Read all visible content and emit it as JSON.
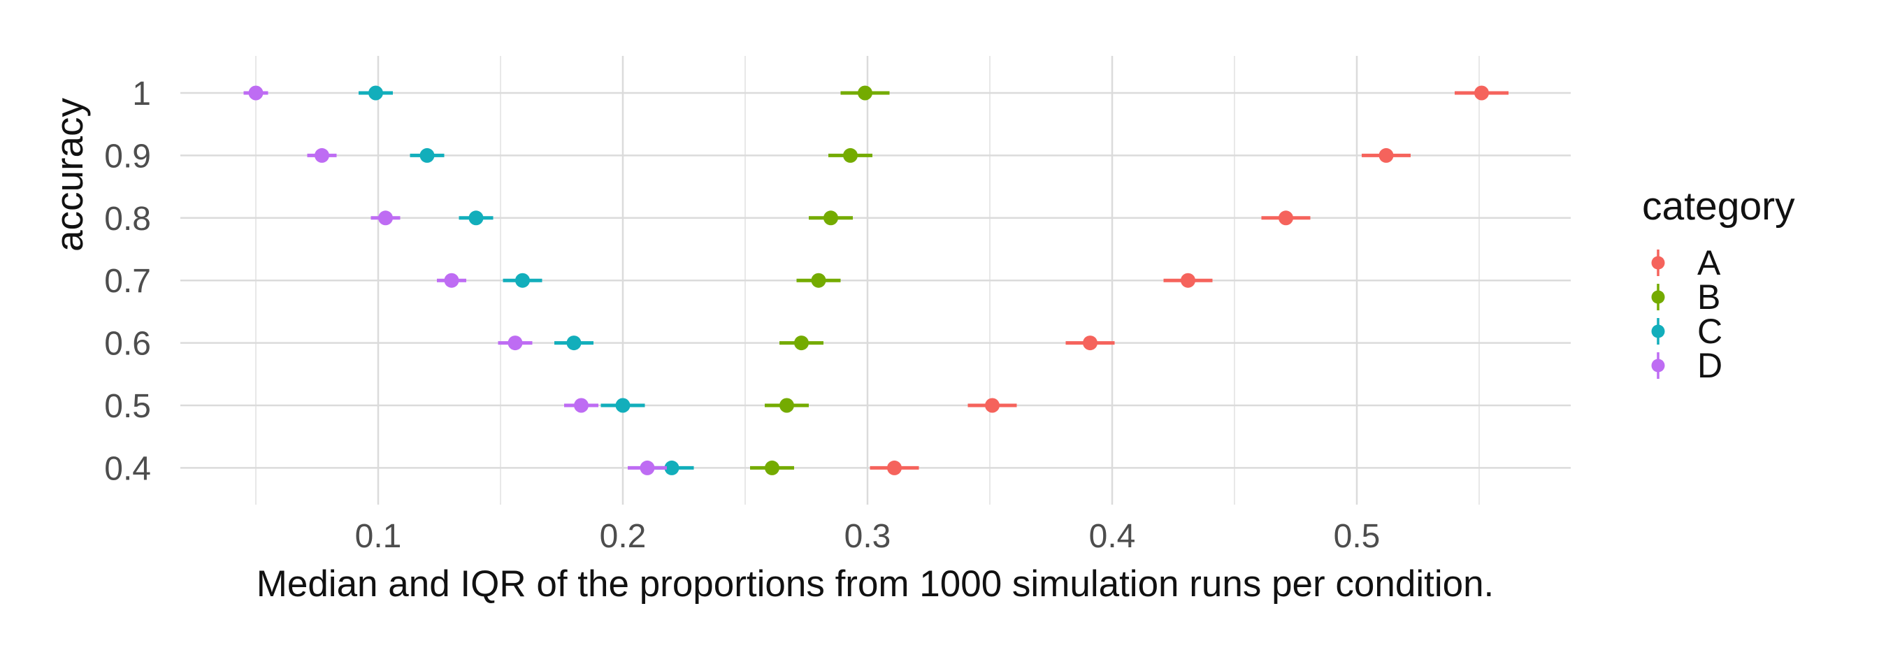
{
  "figure": {
    "kind": "ggplot-style pointrange plot",
    "background_color": "#FFFFFF",
    "tick_text_color": "#4D4D4D",
    "title_text_color": "#111111",
    "major_grid_color": "#DBDBDB",
    "minor_grid_color": "#E8E8E8"
  },
  "chart_data": {
    "type": "scatter",
    "variant": "horizontal pointrange (median dot with IQR whiskers) per accuracy level",
    "title": "",
    "xlabel": "Median and IQR of the proportions from 1000 simulation runs per condition.",
    "ylabel": "accuracy",
    "grid": "major x+y gridlines, minor x gridlines at 0.05 steps, no axis lines or ticks",
    "legend_position": "right",
    "x_tick_labels": [
      "0.1",
      "0.2",
      "0.3",
      "0.4",
      "0.5"
    ],
    "x_tick_values": [
      0.1,
      0.2,
      0.3,
      0.4,
      0.5
    ],
    "x_minor_gridlines": [
      0.05,
      0.15,
      0.25,
      0.35,
      0.45,
      0.55
    ],
    "xlim": [
      0.019,
      0.587
    ],
    "y_tick_labels": [
      "1",
      "0.9",
      "0.8",
      "0.7",
      "0.6",
      "0.5",
      "0.4"
    ],
    "y_tick_values": [
      1,
      0.9,
      0.8,
      0.7,
      0.6,
      0.5,
      0.4
    ],
    "ylim": [
      0.341,
      1.059
    ],
    "legend": {
      "title": "category",
      "items": [
        {
          "label": "A",
          "color": "#F5635C"
        },
        {
          "label": "B",
          "color": "#74AB00"
        },
        {
          "label": "C",
          "color": "#12AEBB"
        },
        {
          "label": "D",
          "color": "#BE6CF3"
        }
      ]
    },
    "series": [
      {
        "name": "A",
        "color": "#F5635C",
        "points": [
          {
            "accuracy": 1.0,
            "median": 0.551,
            "q1": 0.54,
            "q3": 0.562
          },
          {
            "accuracy": 0.9,
            "median": 0.512,
            "q1": 0.502,
            "q3": 0.522
          },
          {
            "accuracy": 0.8,
            "median": 0.471,
            "q1": 0.461,
            "q3": 0.481
          },
          {
            "accuracy": 0.7,
            "median": 0.431,
            "q1": 0.421,
            "q3": 0.441
          },
          {
            "accuracy": 0.6,
            "median": 0.391,
            "q1": 0.381,
            "q3": 0.401
          },
          {
            "accuracy": 0.5,
            "median": 0.351,
            "q1": 0.341,
            "q3": 0.361
          },
          {
            "accuracy": 0.4,
            "median": 0.311,
            "q1": 0.301,
            "q3": 0.321
          }
        ]
      },
      {
        "name": "B",
        "color": "#74AB00",
        "points": [
          {
            "accuracy": 1.0,
            "median": 0.299,
            "q1": 0.289,
            "q3": 0.309
          },
          {
            "accuracy": 0.9,
            "median": 0.293,
            "q1": 0.284,
            "q3": 0.302
          },
          {
            "accuracy": 0.8,
            "median": 0.285,
            "q1": 0.276,
            "q3": 0.294
          },
          {
            "accuracy": 0.7,
            "median": 0.28,
            "q1": 0.271,
            "q3": 0.289
          },
          {
            "accuracy": 0.6,
            "median": 0.273,
            "q1": 0.264,
            "q3": 0.282
          },
          {
            "accuracy": 0.5,
            "median": 0.267,
            "q1": 0.258,
            "q3": 0.276
          },
          {
            "accuracy": 0.4,
            "median": 0.261,
            "q1": 0.252,
            "q3": 0.27
          }
        ]
      },
      {
        "name": "C",
        "color": "#12AEBB",
        "points": [
          {
            "accuracy": 1.0,
            "median": 0.099,
            "q1": 0.092,
            "q3": 0.106
          },
          {
            "accuracy": 0.9,
            "median": 0.12,
            "q1": 0.113,
            "q3": 0.127
          },
          {
            "accuracy": 0.8,
            "median": 0.14,
            "q1": 0.133,
            "q3": 0.147
          },
          {
            "accuracy": 0.7,
            "median": 0.159,
            "q1": 0.151,
            "q3": 0.167
          },
          {
            "accuracy": 0.6,
            "median": 0.18,
            "q1": 0.172,
            "q3": 0.188
          },
          {
            "accuracy": 0.5,
            "median": 0.2,
            "q1": 0.191,
            "q3": 0.209
          },
          {
            "accuracy": 0.4,
            "median": 0.22,
            "q1": 0.211,
            "q3": 0.229
          }
        ]
      },
      {
        "name": "D",
        "color": "#BE6CF3",
        "points": [
          {
            "accuracy": 1.0,
            "median": 0.05,
            "q1": 0.045,
            "q3": 0.055
          },
          {
            "accuracy": 0.9,
            "median": 0.077,
            "q1": 0.071,
            "q3": 0.083
          },
          {
            "accuracy": 0.8,
            "median": 0.103,
            "q1": 0.097,
            "q3": 0.109
          },
          {
            "accuracy": 0.7,
            "median": 0.13,
            "q1": 0.124,
            "q3": 0.136
          },
          {
            "accuracy": 0.6,
            "median": 0.156,
            "q1": 0.149,
            "q3": 0.163
          },
          {
            "accuracy": 0.5,
            "median": 0.183,
            "q1": 0.176,
            "q3": 0.19
          },
          {
            "accuracy": 0.4,
            "median": 0.21,
            "q1": 0.202,
            "q3": 0.218
          }
        ]
      }
    ]
  }
}
